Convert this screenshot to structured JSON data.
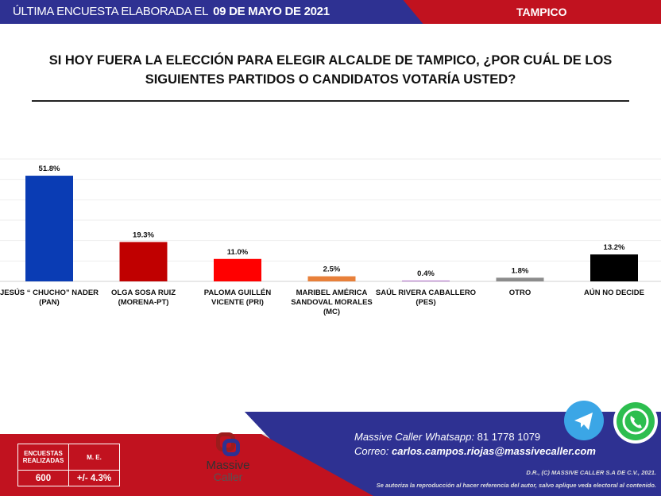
{
  "header": {
    "prefix": "ÚLTIMA ENCUESTA ELABORADA EL",
    "date": "09 DE MAYO DE 2021",
    "city": "TAMPICO"
  },
  "question": "SI HOY FUERA LA ELECCIÓN PARA ELEGIR ALCALDE DE TAMPICO, ¿POR CUÁL DE LOS SIGUIENTES PARTIDOS O CANDIDATOS VOTARÍA USTED?",
  "chart_data": {
    "type": "bar",
    "title": "SI HOY FUERA LA ELECCIÓN PARA ELEGIR ALCALDE DE TAMPICO, ¿POR CUÁL DE LOS SIGUIENTES PARTIDOS O CANDIDATOS VOTARÍA USTED?",
    "categories": [
      [
        "JESÚS “ CHUCHO” NADER",
        "(PAN)"
      ],
      [
        "OLGA SOSA RUIZ",
        "(MORENA-PT)"
      ],
      [
        "PALOMA GUILLÉN",
        "VICENTE (PRI)"
      ],
      [
        "MARIBEL AMÉRICA",
        "SANDOVAL MORALES",
        "(MC)"
      ],
      [
        "SAÚL RIVERA CABALLERO",
        "(PES)"
      ],
      [
        "OTRO"
      ],
      [
        "AÚN NO DECIDE"
      ]
    ],
    "values": [
      51.8,
      19.3,
      11.0,
      2.5,
      0.4,
      1.8,
      13.2
    ],
    "data_labels": [
      "51.8%",
      "19.3%",
      "11.0%",
      "2.5%",
      "0.4%",
      "1.8%",
      "13.2%"
    ],
    "colors": [
      "#0a3cb4",
      "#c00000",
      "#ff0000",
      "#e8803a",
      "#b070c8",
      "#8c8c8c",
      "#000000"
    ],
    "ylim": [
      0,
      60
    ],
    "grid": true,
    "xlabel": "",
    "ylabel": ""
  },
  "footer": {
    "table": {
      "h1": "ENCUESTAS REALIZADAS",
      "h2": "M. E.",
      "v1": "600",
      "v2": "+/- 4.3%"
    },
    "logo": {
      "line1": "Massive",
      "line2": "Caller"
    },
    "whatsapp_label": "Massive Caller Whatsapp:",
    "whatsapp": "81 1778 1079",
    "email_label": "Correo:",
    "email": "carlos.campos.riojas@massivecaller.com",
    "copyright": "D.R., (C) MASSIVE CALLER S.A DE C.V., 2021.",
    "notice": "Se autoriza la reproducción al hacer referencia del autor, salvo aplique veda electoral al contenido."
  }
}
